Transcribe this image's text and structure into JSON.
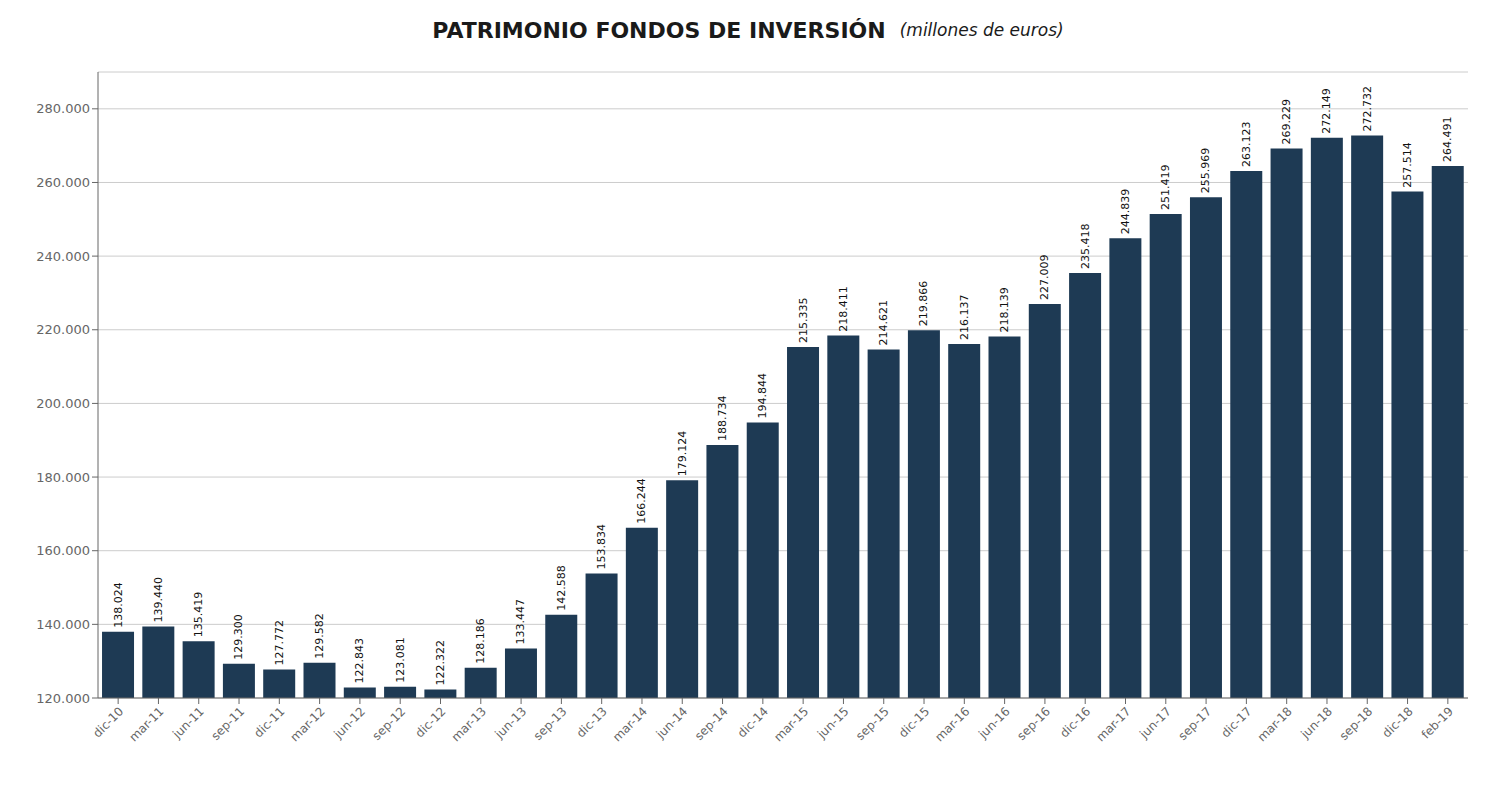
{
  "chart_data": {
    "type": "bar",
    "title": "PATRIMONIO  FONDOS DE INVERSIÓN",
    "subtitle": "(millones de euros)",
    "color": "#1e3a54",
    "grid": true,
    "data_labels": true,
    "ylim": [
      120000,
      290000
    ],
    "yticks": [
      {
        "value": 120000,
        "label": "120.000"
      },
      {
        "value": 140000,
        "label": "140.000"
      },
      {
        "value": 160000,
        "label": "160.000"
      },
      {
        "value": 180000,
        "label": "180.000"
      },
      {
        "value": 200000,
        "label": "200.000"
      },
      {
        "value": 220000,
        "label": "220.000"
      },
      {
        "value": 240000,
        "label": "240.000"
      },
      {
        "value": 260000,
        "label": "260.000"
      },
      {
        "value": 280000,
        "label": "280.000"
      }
    ],
    "categories": [
      "dic-10",
      "mar-11",
      "jun-11",
      "sep-11",
      "dic-11",
      "mar-12",
      "jun-12",
      "sep-12",
      "dic-12",
      "mar-13",
      "jun-13",
      "sep-13",
      "dic-13",
      "mar-14",
      "jun-14",
      "sep-14",
      "dic-14",
      "mar-15",
      "jun-15",
      "sep-15",
      "dic-15",
      "mar-16",
      "jun-16",
      "sep-16",
      "dic-16",
      "mar-17",
      "jun-17",
      "sep-17",
      "dic-17",
      "mar-18",
      "jun-18",
      "sep-18",
      "dic-18",
      "feb-19"
    ],
    "values": [
      138024,
      139440,
      135419,
      129300,
      127772,
      129582,
      122843,
      123081,
      122322,
      128186,
      133447,
      142588,
      153834,
      166244,
      179124,
      188734,
      194844,
      215335,
      218411,
      214621,
      219866,
      216137,
      218139,
      227009,
      235418,
      244839,
      251419,
      255969,
      263123,
      269229,
      272149,
      272732,
      257514,
      264491
    ],
    "value_labels": [
      "138.024",
      "139.440",
      "135.419",
      "129.300",
      "127.772",
      "129.582",
      "122.843",
      "123.081",
      "122.322",
      "128.186",
      "133.447",
      "142.588",
      "153.834",
      "166.244",
      "179.124",
      "188.734",
      "194.844",
      "215.335",
      "218.411",
      "214.621",
      "219.866",
      "216.137",
      "218.139",
      "227.009",
      "235.418",
      "244.839",
      "251.419",
      "255.969",
      "263.123",
      "269.229",
      "272.149",
      "272.732",
      "257.514",
      "264.491"
    ]
  }
}
